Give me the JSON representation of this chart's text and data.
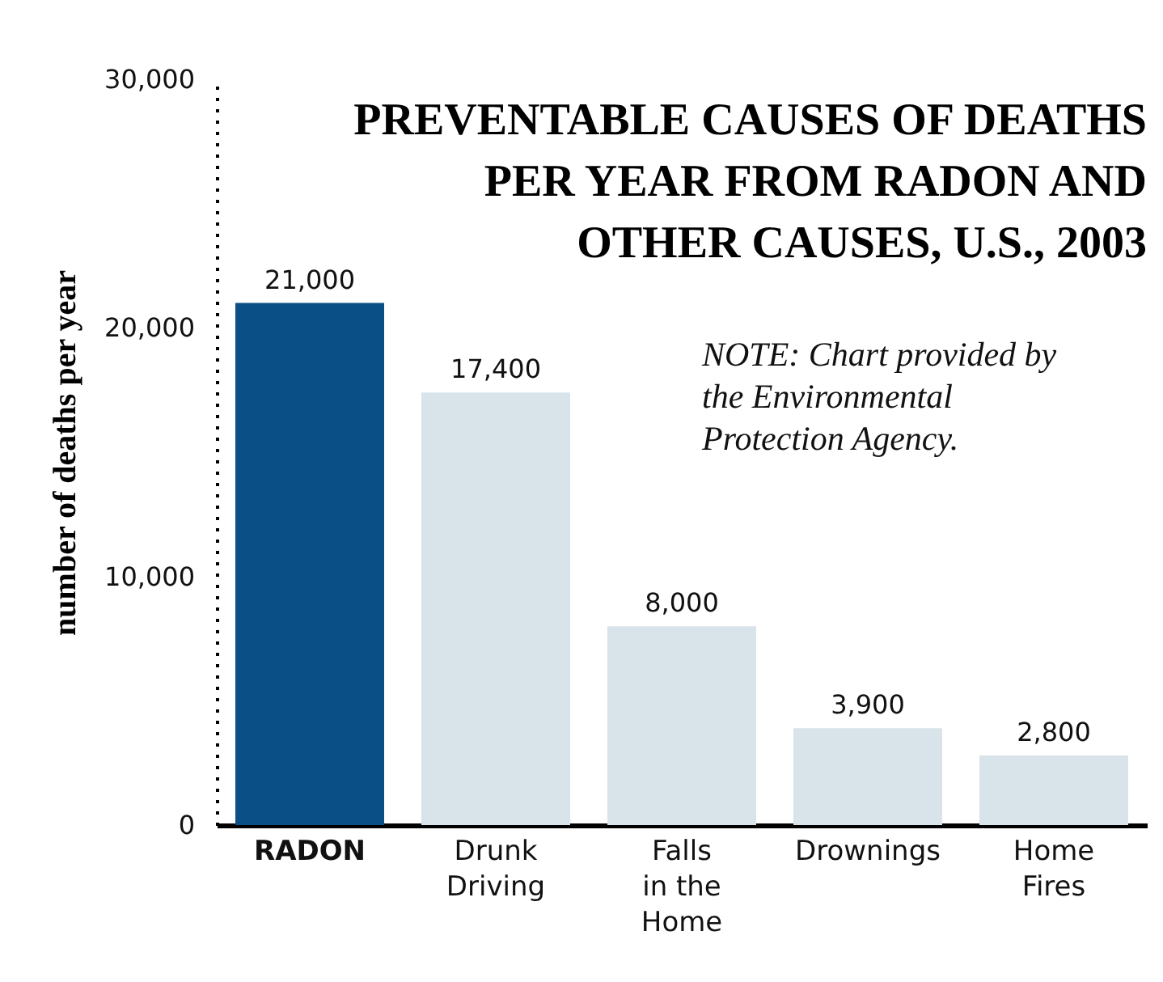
{
  "chart_data": {
    "type": "bar",
    "title": "PREVENTABLE CAUSES OF DEATHS PER YEAR FROM RADON AND OTHER CAUSES, U.S., 2003",
    "ylabel": "number of deaths per year",
    "categories": [
      "RADON",
      "Drunk Driving",
      "Falls in the Home",
      "Drownings",
      "Home Fires"
    ],
    "values": [
      21000,
      17400,
      8000,
      3900,
      2800
    ],
    "colors": [
      "#0a4f86",
      "#d9e3ea",
      "#d9e3ea",
      "#d9e3ea",
      "#d9e3ea"
    ],
    "ylim": [
      0,
      30000
    ],
    "yticks": [
      0,
      {
        "value": 10000,
        "label": "10,000"
      },
      {
        "value": 20000,
        "label": "20,000"
      },
      {
        "value": 30000,
        "label": "30,000"
      }
    ],
    "value_labels": [
      "21,000",
      "17,400",
      "8,000",
      "3,900",
      "2,800"
    ],
    "grid": false,
    "annotations": [
      "NOTE: Chart provided by the Environmental Protection Agency."
    ]
  }
}
